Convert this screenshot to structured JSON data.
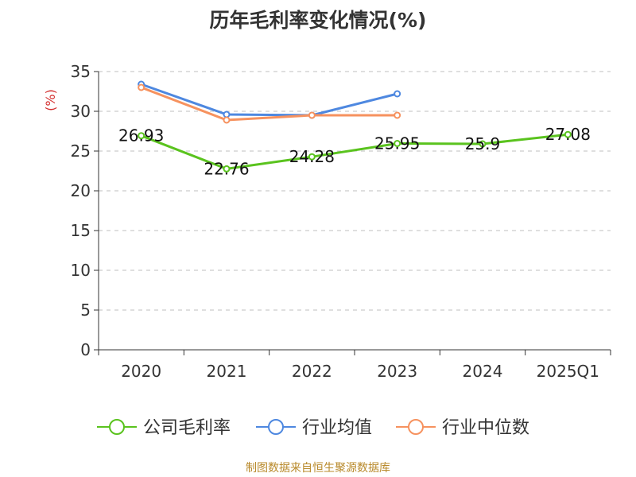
{
  "title": "历年毛利率变化情况(%)",
  "source": "制图数据来自恒生聚源数据库",
  "colors": {
    "company": "#5ac31e",
    "avg": "#4e88e0",
    "median": "#f6925f",
    "axis": "#333333",
    "grid": "#cccccc",
    "unit": "#d32f2f",
    "source": "#b8892a"
  },
  "chart_data": {
    "type": "line",
    "title": "历年毛利率变化情况(%)",
    "ylabel": "(%)",
    "xlabel": "",
    "categories": [
      "2020",
      "2021",
      "2022",
      "2023",
      "2024",
      "2025Q1"
    ],
    "ylim": [
      0,
      35
    ],
    "yticks": [
      0,
      5,
      10,
      15,
      20,
      25,
      30,
      35
    ],
    "grid": "horizontal dashed",
    "legend_position": "bottom",
    "series": [
      {
        "name": "公司毛利率",
        "color": "#5ac31e",
        "values": [
          26.93,
          22.76,
          24.28,
          25.95,
          25.9,
          27.08
        ],
        "labels": [
          "26.93",
          "22.76",
          "24.28",
          "25.95",
          "25.9",
          "27.08"
        ]
      },
      {
        "name": "行业均值",
        "color": "#4e88e0",
        "values": [
          33.4,
          29.6,
          29.5,
          32.2,
          null,
          null
        ]
      },
      {
        "name": "行业中位数",
        "color": "#f6925f",
        "values": [
          33.0,
          28.9,
          29.5,
          29.5,
          null,
          null
        ]
      }
    ]
  }
}
